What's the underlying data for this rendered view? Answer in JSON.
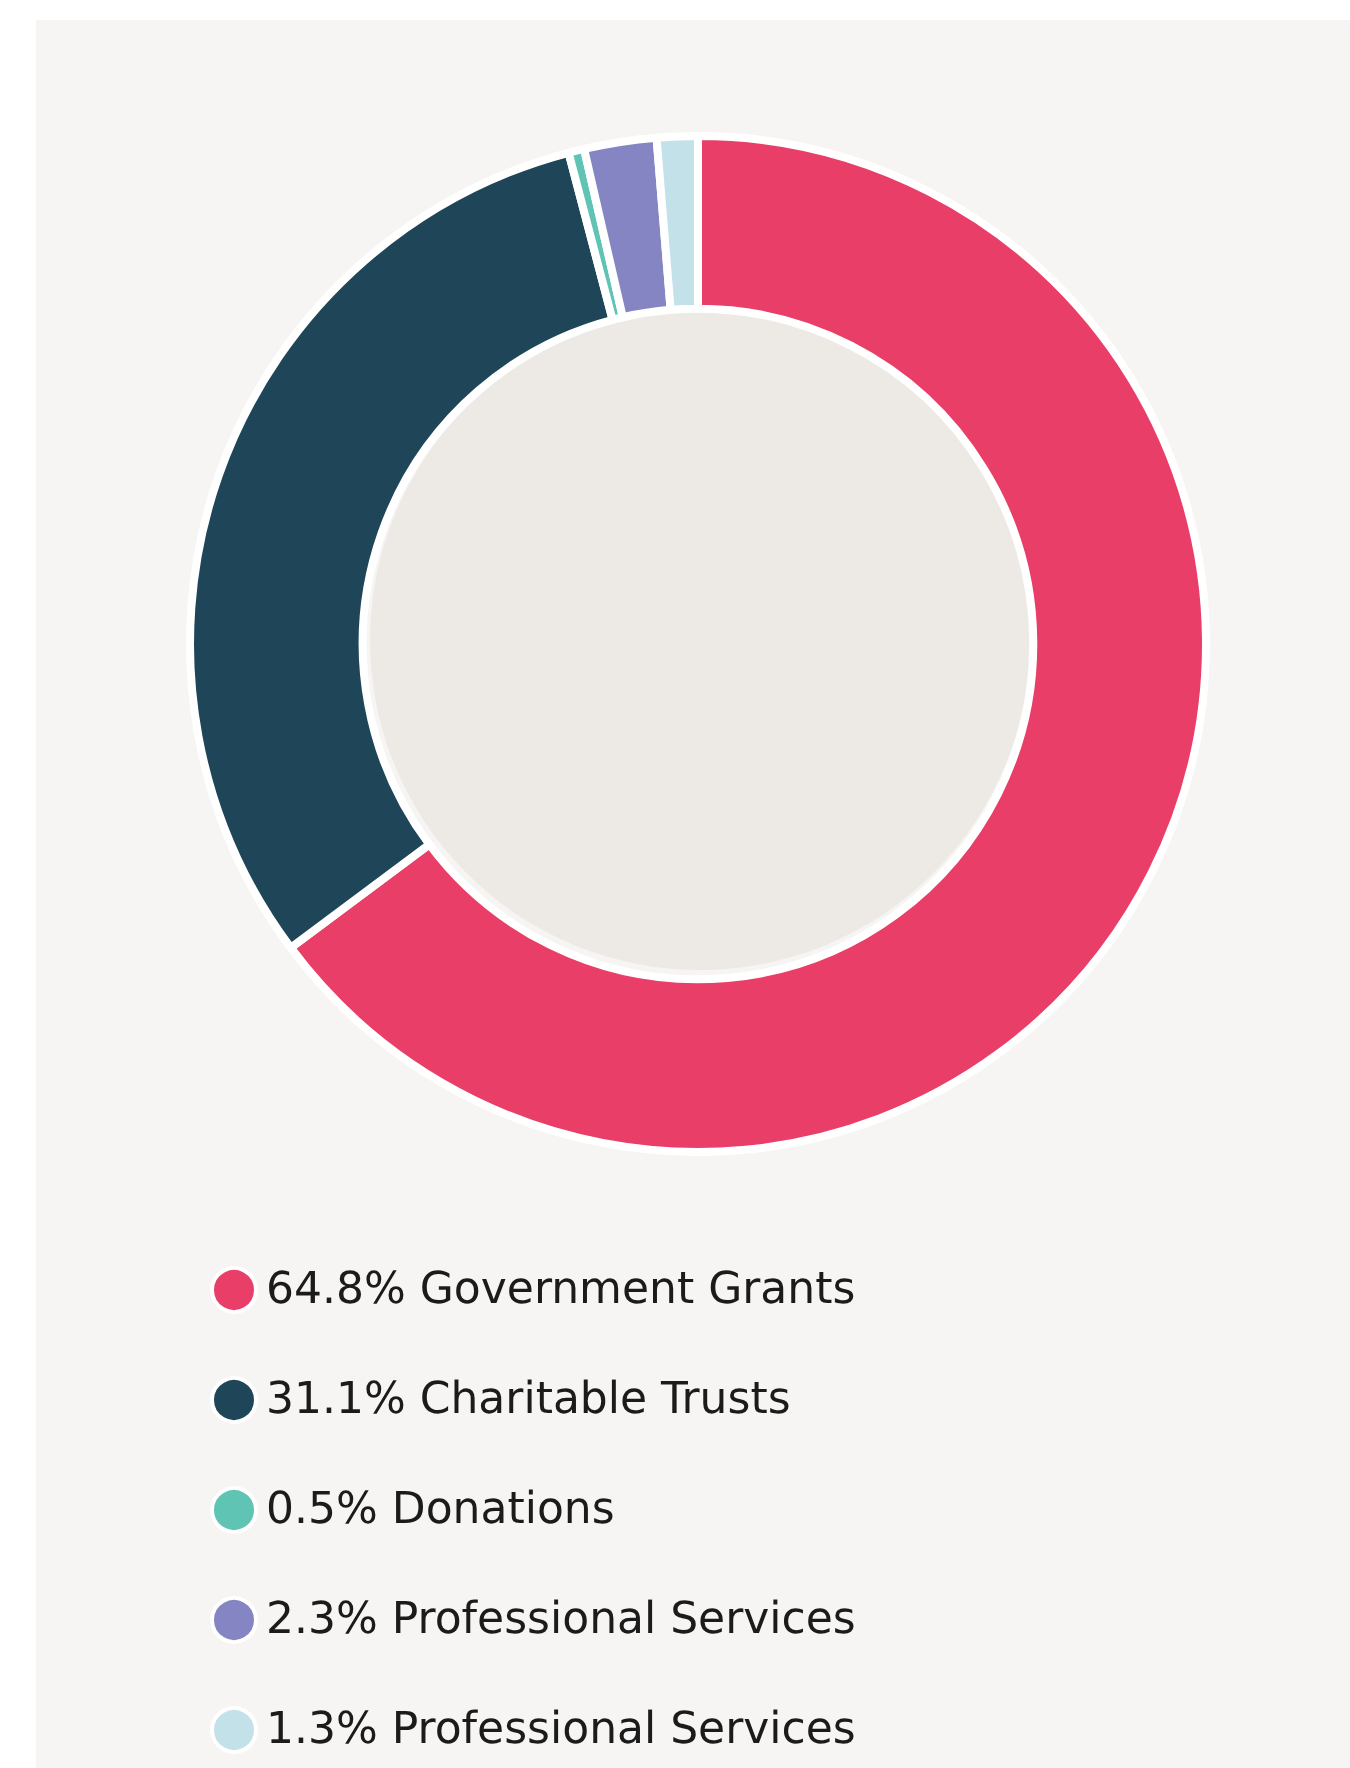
{
  "chart_data": {
    "type": "donut",
    "categories": [
      "64.8% Government Grants",
      "31.1% Charitable Trusts",
      "0.5% Donations",
      "2.3% Professional Services",
      "1.3% Professional Services"
    ],
    "values": [
      64.8,
      31.1,
      0.5,
      2.3,
      1.3
    ],
    "colors": [
      "#e93e67",
      "#1f4658",
      "#5fc4b4",
      "#8485c2",
      "#c2e1e8"
    ],
    "legend": "bottom"
  }
}
